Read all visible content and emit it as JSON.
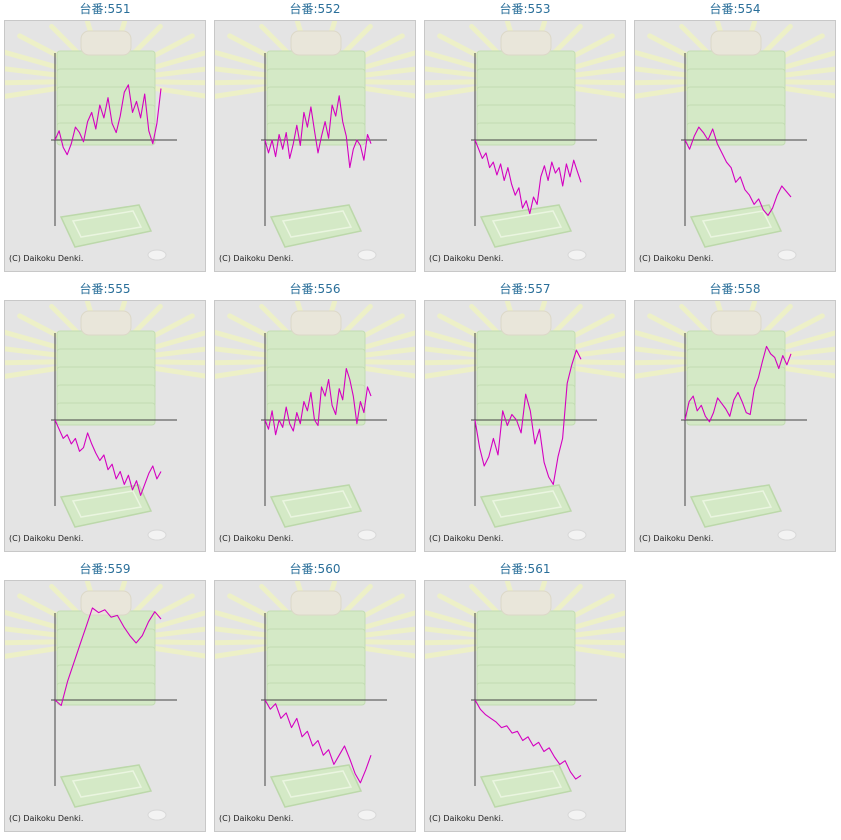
{
  "copyright": "(C) Daikoku Denki.",
  "colors": {
    "line": "#d400c0",
    "axis": "#444444",
    "title": "#2a6f9a",
    "panel": "#e4e4e4"
  },
  "chart_data": [
    {
      "type": "line",
      "title": "台番:551",
      "values": [
        0,
        10,
        -8,
        -16,
        -4,
        14,
        8,
        -2,
        20,
        30,
        12,
        38,
        24,
        46,
        18,
        8,
        26,
        52,
        60,
        30,
        42,
        24,
        50,
        10,
        -4,
        18,
        56
      ]
    },
    {
      "type": "line",
      "title": "台番:552",
      "values": [
        0,
        -14,
        0,
        -18,
        6,
        -10,
        8,
        -20,
        -4,
        16,
        -6,
        30,
        14,
        36,
        10,
        -14,
        4,
        20,
        2,
        38,
        26,
        48,
        20,
        4,
        -30,
        -10,
        0,
        -6,
        -22,
        6,
        -4
      ]
    },
    {
      "type": "line",
      "title": "台番:553",
      "values": [
        0,
        -10,
        -20,
        -14,
        -30,
        -24,
        -38,
        -26,
        -44,
        -30,
        -48,
        -60,
        -52,
        -74,
        -66,
        -80,
        -62,
        -70,
        -40,
        -28,
        -44,
        -24,
        -36,
        -30,
        -50,
        -26,
        -40,
        -22,
        -34,
        -46
      ]
    },
    {
      "type": "line",
      "title": "台番:554",
      "values": [
        0,
        -10,
        4,
        14,
        8,
        0,
        12,
        -4,
        -14,
        -24,
        -30,
        -46,
        -40,
        -54,
        -60,
        -70,
        -64,
        -76,
        -82,
        -74,
        -60,
        -50,
        -56,
        -62
      ]
    },
    {
      "type": "line",
      "title": "台番:555",
      "values": [
        0,
        -10,
        -20,
        -16,
        -26,
        -20,
        -34,
        -30,
        -14,
        -26,
        -36,
        -44,
        -38,
        -54,
        -48,
        -64,
        -56,
        -70,
        -60,
        -76,
        -66,
        -82,
        -70,
        -58,
        -50,
        -64,
        -56
      ]
    },
    {
      "type": "line",
      "title": "台番:556",
      "values": [
        0,
        -10,
        10,
        -16,
        0,
        -8,
        14,
        -4,
        -12,
        8,
        -4,
        20,
        10,
        30,
        0,
        -6,
        36,
        26,
        44,
        16,
        6,
        34,
        22,
        56,
        44,
        26,
        -4,
        20,
        8,
        36,
        26
      ]
    },
    {
      "type": "line",
      "title": "台番:557",
      "values": [
        0,
        -30,
        -50,
        -40,
        -20,
        -38,
        10,
        -6,
        6,
        0,
        -14,
        28,
        10,
        -26,
        -10,
        -46,
        -62,
        -70,
        -40,
        -20,
        40,
        60,
        76,
        66
      ]
    },
    {
      "type": "line",
      "title": "台番:558",
      "values": [
        0,
        20,
        26,
        10,
        16,
        4,
        -2,
        8,
        24,
        18,
        12,
        4,
        22,
        30,
        20,
        8,
        6,
        34,
        46,
        64,
        80,
        72,
        68,
        56,
        70,
        60,
        72
      ]
    },
    {
      "type": "line",
      "title": "台番:559",
      "values": [
        0,
        -6,
        20,
        40,
        60,
        80,
        100,
        95,
        98,
        90,
        92,
        80,
        70,
        62,
        70,
        85,
        96,
        88
      ]
    },
    {
      "type": "line",
      "title": "台番:560",
      "values": [
        0,
        -10,
        -4,
        -20,
        -14,
        -30,
        -20,
        -40,
        -34,
        -50,
        -44,
        -60,
        -54,
        -70,
        -60,
        -50,
        -64,
        -80,
        -90,
        -76,
        -60
      ]
    },
    {
      "type": "line",
      "title": "台番:561",
      "values": [
        0,
        -10,
        -16,
        -20,
        -24,
        -30,
        -28,
        -36,
        -34,
        -44,
        -40,
        -50,
        -46,
        -56,
        -52,
        -62,
        -70,
        -66,
        -78,
        -86,
        -82
      ]
    }
  ]
}
